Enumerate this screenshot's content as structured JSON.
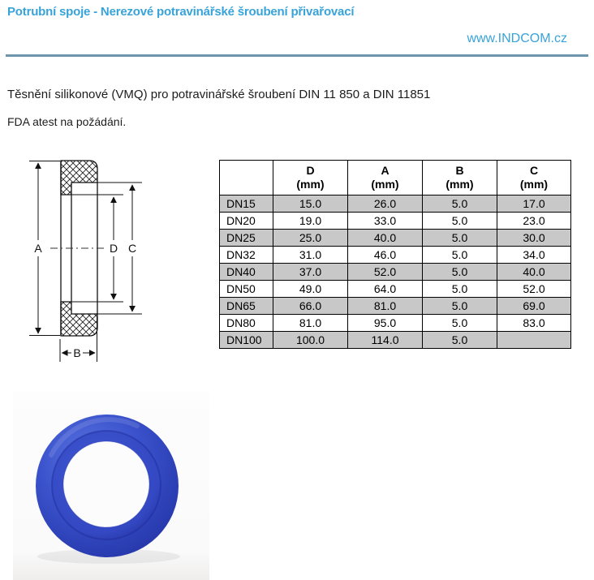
{
  "header": {
    "title": "Potrubní spoje - Nerezové potravinářské šroubení přivařovací",
    "website": "www.INDCOM.cz"
  },
  "intro": {
    "line1": "Těsnění silikonové (VMQ) pro potravinářské šroubení DIN 11 850 a DIN 11851",
    "line2": "FDA atest na požádání."
  },
  "diagram": {
    "description": "gasket cross-section with dimension arrows",
    "labels": {
      "a": "A",
      "b": "B",
      "c": "C",
      "d": "D"
    }
  },
  "table": {
    "columns": [
      {
        "letter": "D",
        "unit": "(mm)"
      },
      {
        "letter": "A",
        "unit": "(mm)"
      },
      {
        "letter": "B",
        "unit": "(mm)"
      },
      {
        "letter": "C",
        "unit": "(mm)"
      }
    ],
    "rows": [
      [
        "DN15",
        "15.0",
        "26.0",
        "5.0",
        "17.0"
      ],
      [
        "DN20",
        "19.0",
        "33.0",
        "5.0",
        "23.0"
      ],
      [
        "DN25",
        "25.0",
        "40.0",
        "5.0",
        "30.0"
      ],
      [
        "DN32",
        "31.0",
        "46.0",
        "5.0",
        "34.0"
      ],
      [
        "DN40",
        "37.0",
        "52.0",
        "5.0",
        "40.0"
      ],
      [
        "DN50",
        "49.0",
        "64.0",
        "5.0",
        "52.0"
      ],
      [
        "DN65",
        "66.0",
        "81.0",
        "5.0",
        "69.0"
      ],
      [
        "DN80",
        "81.0",
        "95.0",
        "5.0",
        "83.0"
      ],
      [
        "DN100",
        "100.0",
        "114.0",
        "5.0",
        ""
      ]
    ]
  },
  "photo": {
    "description": "blue silicone gasket ring on white background"
  },
  "colors": {
    "accent": "#38a3d8",
    "rule": "#6d93ad",
    "row_shade": "#c8c8c8",
    "ring_blue": "#3a52cc",
    "text": "#1c1c1c"
  }
}
